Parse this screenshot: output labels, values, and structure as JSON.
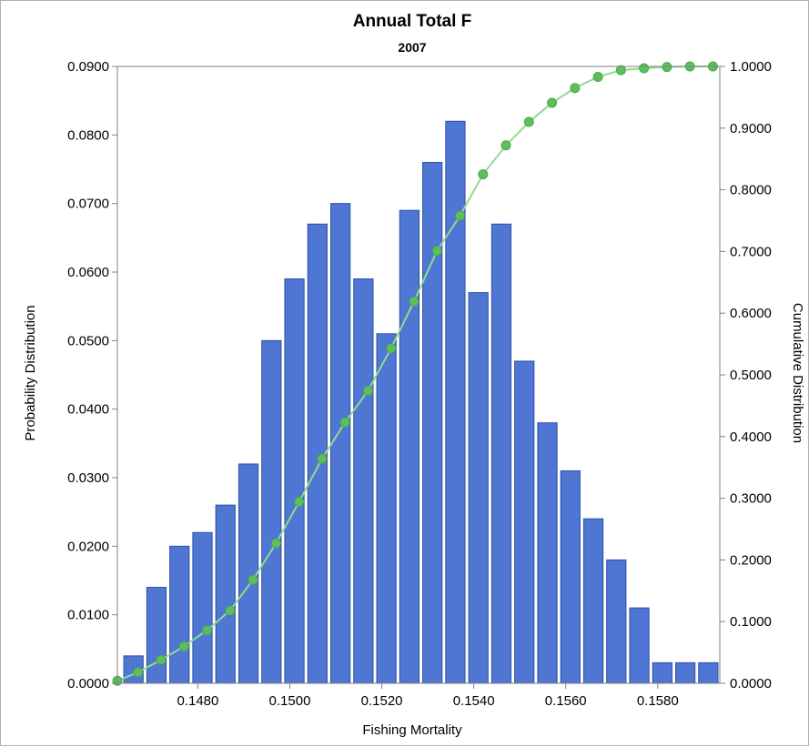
{
  "chart_data": {
    "type": "bar",
    "title": "Annual Total F",
    "subtitle": "2007",
    "xlabel": "Fishing Mortality",
    "ylabel_left": "Probability Distribution",
    "ylabel_right": "Cumulative Distribution",
    "xlim": [
      0.14625,
      0.15935
    ],
    "x_ticks": [
      {
        "value": 0.148,
        "label": "0.1480"
      },
      {
        "value": 0.15,
        "label": "0.1500"
      },
      {
        "value": 0.152,
        "label": "0.1520"
      },
      {
        "value": 0.154,
        "label": "0.1540"
      },
      {
        "value": 0.156,
        "label": "0.1560"
      },
      {
        "value": 0.158,
        "label": "0.1580"
      }
    ],
    "ylim_left": [
      0,
      0.09
    ],
    "y_ticks_left": [
      "0.0000",
      "0.0100",
      "0.0200",
      "0.0300",
      "0.0400",
      "0.0500",
      "0.0600",
      "0.0700",
      "0.0800",
      "0.0900"
    ],
    "ylim_right": [
      0,
      1.0
    ],
    "y_ticks_right": [
      "0.0000",
      "0.1000",
      "0.2000",
      "0.3000",
      "0.4000",
      "0.5000",
      "0.6000",
      "0.7000",
      "0.8000",
      "0.9000",
      "1.0000"
    ],
    "bar_width": 0.00042,
    "series": [
      {
        "type": "bar",
        "axis": "left",
        "color": "#4f76d2",
        "x": [
          0.1466,
          0.1471,
          0.1476,
          0.1481,
          0.1486,
          0.1491,
          0.1496,
          0.1501,
          0.1506,
          0.1511,
          0.1516,
          0.1521,
          0.1526,
          0.1531,
          0.1536,
          0.1541,
          0.1546,
          0.1551,
          0.1556,
          0.1561,
          0.1566,
          0.1571,
          0.1576,
          0.1581,
          0.1586,
          0.1591
        ],
        "values": [
          0.004,
          0.014,
          0.02,
          0.022,
          0.026,
          0.032,
          0.05,
          0.059,
          0.067,
          0.07,
          0.059,
          0.051,
          0.069,
          0.076,
          0.082,
          0.057,
          0.067,
          0.047,
          0.038,
          0.031,
          0.024,
          0.018,
          0.011,
          0.003,
          0.003,
          0.003
        ]
      },
      {
        "type": "line",
        "axis": "right",
        "color": "#5cbf5c",
        "x": [
          0.14625,
          0.1467,
          0.1472,
          0.1477,
          0.1482,
          0.1487,
          0.1492,
          0.1497,
          0.1502,
          0.1507,
          0.1512,
          0.1517,
          0.1522,
          0.1527,
          0.1532,
          0.1537,
          0.1542,
          0.1547,
          0.1552,
          0.1557,
          0.1562,
          0.1567,
          0.1572,
          0.1577,
          0.1582,
          0.1587,
          0.1592
        ],
        "values": [
          0.004,
          0.018,
          0.038,
          0.06,
          0.086,
          0.118,
          0.168,
          0.227,
          0.294,
          0.364,
          0.423,
          0.474,
          0.543,
          0.619,
          0.701,
          0.758,
          0.825,
          0.872,
          0.91,
          0.941,
          0.965,
          0.983,
          0.994,
          0.997,
          0.999,
          1.0,
          1.0
        ]
      }
    ],
    "grid": false,
    "legend": "none"
  }
}
